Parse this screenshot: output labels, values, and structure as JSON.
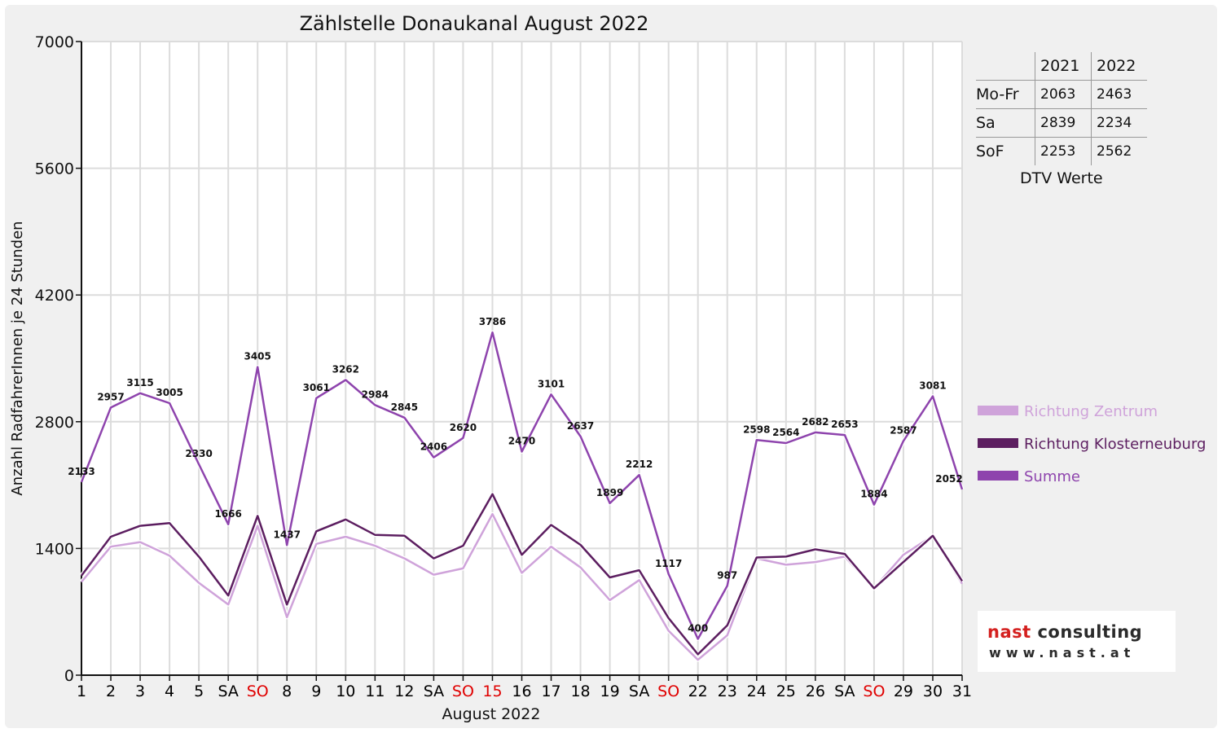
{
  "chart_data": {
    "type": "line",
    "title": "Zählstelle Donaukanal August 2022",
    "xlabel": "August 2022",
    "ylabel": "Anzahl RadfahrerInnen je 24 Stunden",
    "ylim": [
      0,
      7000
    ],
    "yticks": [
      "0",
      "1400",
      "2800",
      "4200",
      "5600",
      "7000"
    ],
    "grid": true,
    "legend_position": "right",
    "categories": [
      "1",
      "2",
      "3",
      "4",
      "5",
      "SA",
      "SO",
      "8",
      "9",
      "10",
      "11",
      "12",
      "SA",
      "SO",
      "15",
      "16",
      "17",
      "18",
      "19",
      "SA",
      "SO",
      "22",
      "23",
      "24",
      "25",
      "26",
      "SA",
      "SO",
      "29",
      "30",
      "31"
    ],
    "category_colors": [
      "#000000",
      "#000000",
      "#000000",
      "#000000",
      "#000000",
      "#000000",
      "#e00000",
      "#000000",
      "#000000",
      "#000000",
      "#000000",
      "#000000",
      "#000000",
      "#e00000",
      "#e00000",
      "#000000",
      "#000000",
      "#000000",
      "#000000",
      "#000000",
      "#e00000",
      "#000000",
      "#000000",
      "#000000",
      "#000000",
      "#000000",
      "#000000",
      "#e00000",
      "#000000",
      "#000000",
      "#000000"
    ],
    "series": [
      {
        "name": "Richtung Zentrum",
        "color": "#cfa3da",
        "values": [
          1030,
          1420,
          1470,
          1320,
          1020,
          780,
          1650,
          640,
          1450,
          1530,
          1430,
          1290,
          1110,
          1180,
          1780,
          1130,
          1420,
          1190,
          830,
          1050,
          490,
          170,
          440,
          1290,
          1220,
          1250,
          1310,
          960,
          1330,
          1540,
          1010
        ]
      },
      {
        "name": "Richtung Klosterneuburg",
        "color": "#5c1e60",
        "values": [
          1100,
          1530,
          1650,
          1680,
          1310,
          880,
          1760,
          780,
          1590,
          1720,
          1550,
          1540,
          1290,
          1430,
          2000,
          1330,
          1660,
          1440,
          1080,
          1160,
          630,
          230,
          550,
          1300,
          1310,
          1390,
          1340,
          960,
          1250,
          1540,
          1040
        ]
      },
      {
        "name": "Summe",
        "color": "#8e44ad",
        "values": [
          2133,
          2957,
          3115,
          3005,
          2330,
          1666,
          3405,
          1437,
          3061,
          3262,
          2984,
          2845,
          2406,
          2620,
          3786,
          2470,
          3101,
          2637,
          1899,
          2212,
          1117,
          400,
          987,
          2598,
          2564,
          2682,
          2653,
          1884,
          2587,
          3081,
          2052
        ]
      }
    ],
    "data_labels": [
      "2133",
      "2957",
      "3115",
      "3005",
      "2330",
      "1666",
      "3405",
      "1437",
      "3061",
      "3262",
      "2984",
      "2845",
      "2406",
      "2620",
      "3786",
      "2470",
      "3101",
      "2637",
      "1899",
      "2212",
      "1117",
      "400",
      "987",
      "2598",
      "2564",
      "2682",
      "2653",
      "1884",
      "2587",
      "3081",
      "2052"
    ]
  },
  "dtv_table": {
    "headers": [
      "",
      "2021",
      "2022"
    ],
    "rows": [
      {
        "label": "Mo-Fr",
        "y2021": "2063",
        "y2022": "2463"
      },
      {
        "label": "Sa",
        "y2021": "2839",
        "y2022": "2234"
      },
      {
        "label": "SoF",
        "y2021": "2253",
        "y2022": "2562"
      }
    ],
    "caption": "DTV Werte"
  },
  "logo": {
    "name_accent": "nast",
    "name_rest": " consulting",
    "url": "www.nast.at"
  }
}
